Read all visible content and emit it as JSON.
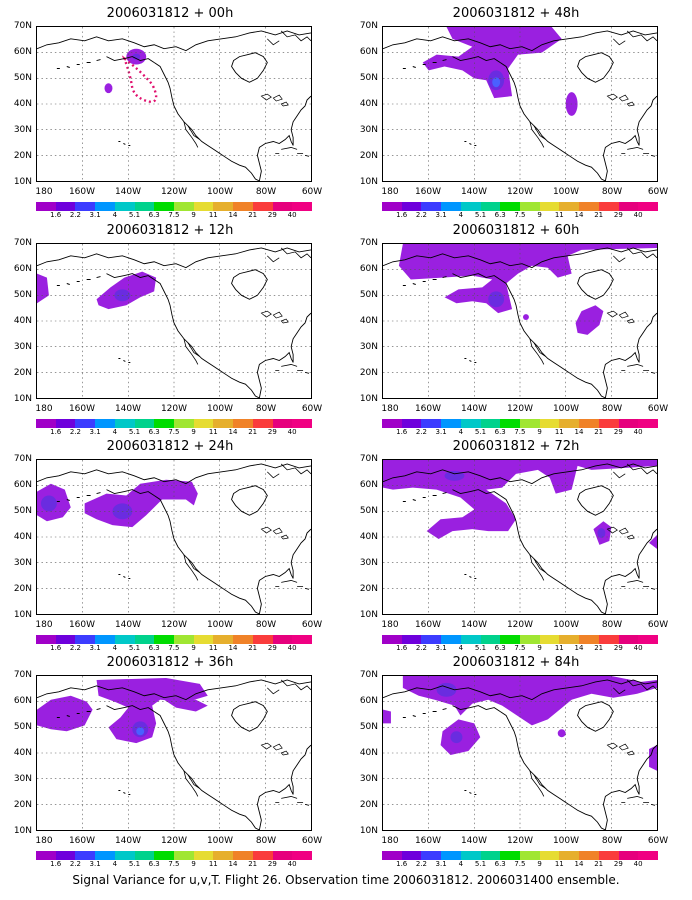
{
  "panels": [
    {
      "title": "2006031812 + 00h"
    },
    {
      "title": "2006031812 + 48h"
    },
    {
      "title": "2006031812 + 12h"
    },
    {
      "title": "2006031812 + 60h"
    },
    {
      "title": "2006031812 + 24h"
    },
    {
      "title": "2006031812 + 72h"
    },
    {
      "title": "2006031812 + 36h"
    },
    {
      "title": "2006031812 + 84h"
    }
  ],
  "lat_labels": [
    "70N",
    "60N",
    "50N",
    "40N",
    "30N",
    "20N",
    "10N"
  ],
  "lon_labels": [
    "180",
    "160W",
    "140W",
    "120W",
    "100W",
    "80W",
    "60W"
  ],
  "colorbar": {
    "labels": [
      "1.6",
      "2.2",
      "3.1",
      "4",
      "5.1",
      "6.3",
      "7.5",
      "9",
      "11",
      "14",
      "21",
      "29",
      "40"
    ],
    "colors": [
      "#a000c8",
      "#6e00dc",
      "#3c3cff",
      "#0096ff",
      "#00c8c8",
      "#00d28c",
      "#00dc00",
      "#a0e632",
      "#e6dc32",
      "#e6af2d",
      "#f08228",
      "#fa3c3c",
      "#e6007d",
      "#f00082"
    ]
  },
  "caption": "Signal Variance for u,v,T. Flight 26. Observation time 2006031812. 2006031400 ensemble."
}
